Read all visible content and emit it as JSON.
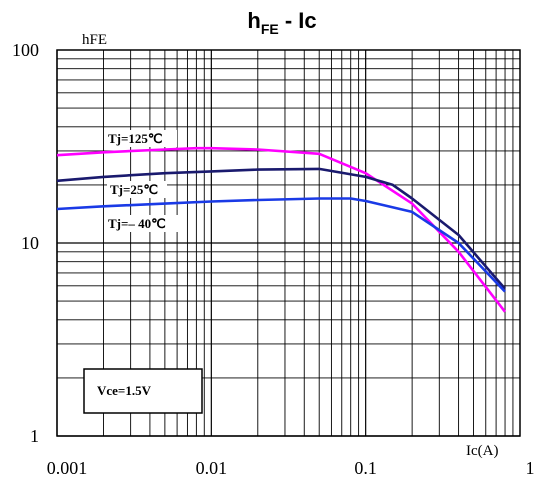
{
  "chart_data": {
    "type": "line",
    "title": {
      "main": "h",
      "sub": "FE",
      "rest": " - Ic"
    },
    "ylabel": "hFE",
    "xlabel": "Ic(A)",
    "x_scale": "log",
    "y_scale": "log",
    "xlim": [
      0.001,
      1
    ],
    "ylim": [
      1,
      100
    ],
    "x_ticks": [
      "0.001",
      "0.01",
      "0.1",
      "1"
    ],
    "y_ticks": [
      "1",
      "10",
      "100"
    ],
    "grid": true,
    "condition_label": "Vce=1.5V",
    "series": [
      {
        "name": "Tj=125℃",
        "color": "#ff00ff",
        "x": [
          0.001,
          0.002,
          0.005,
          0.008,
          0.01,
          0.02,
          0.05,
          0.1,
          0.2,
          0.4,
          0.8
        ],
        "y": [
          28.5,
          29.5,
          30.5,
          31,
          31,
          30.5,
          29,
          23,
          16,
          9,
          4.4
        ]
      },
      {
        "name": "Tj=25℃",
        "color": "#1a1a6e",
        "x": [
          0.001,
          0.002,
          0.005,
          0.01,
          0.02,
          0.05,
          0.1,
          0.15,
          0.2,
          0.4,
          0.8
        ],
        "y": [
          21,
          22,
          23,
          23.5,
          24,
          24.2,
          22,
          20,
          17,
          11,
          5.8
        ]
      },
      {
        "name": "Tj=– 40℃",
        "color": "#1a3ae6",
        "x": [
          0.001,
          0.002,
          0.005,
          0.01,
          0.02,
          0.05,
          0.08,
          0.1,
          0.2,
          0.4,
          0.8
        ],
        "y": [
          15,
          15.5,
          16,
          16.4,
          16.7,
          17,
          17,
          16.5,
          14.5,
          10,
          5.6
        ]
      }
    ]
  }
}
